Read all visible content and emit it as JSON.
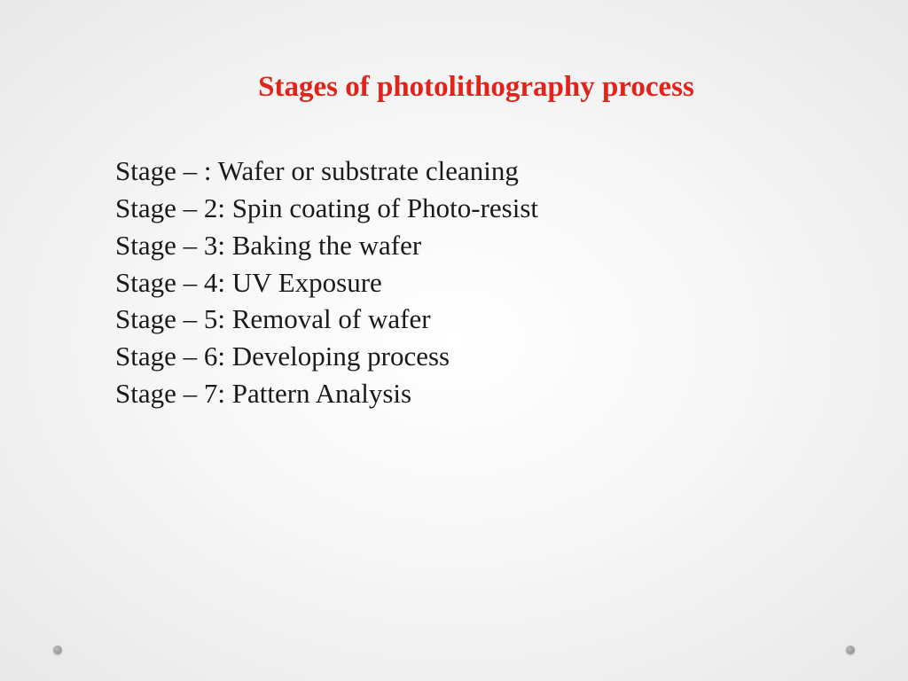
{
  "slide": {
    "title": "Stages of  photolithography process",
    "title_color": "#e2231a",
    "title_fontsize": 33,
    "body_color": "#1a1a1a",
    "body_fontsize": 31,
    "background_gradient": [
      "#ffffff",
      "#f5f5f5",
      "#e8e8e8"
    ],
    "stages": [
      "Stage – : Wafer or substrate cleaning",
      "Stage – 2: Spin coating of Photo-resist",
      "Stage – 3: Baking the wafer",
      "Stage – 4: UV Exposure",
      "Stage – 5: Removal of wafer",
      "Stage – 6: Developing process",
      "Stage – 7: Pattern Analysis"
    ],
    "decorative_dot_color": "#999999"
  }
}
